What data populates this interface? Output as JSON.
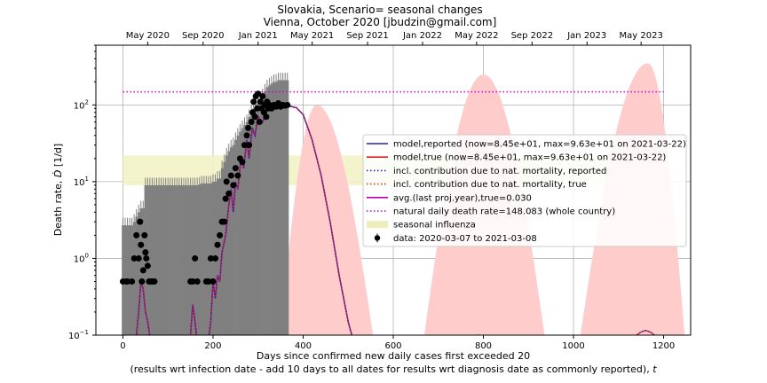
{
  "chart_data": {
    "type": "line",
    "title": "Slovakia, Scenario= seasonal changes",
    "subtitle": "Vienna, October 2020 [jbudzin@gmail.com]",
    "xlabel": "Days since confirmed new daily cases first exceeded 20",
    "xlabel2": "(results wrt infection date - add 10 days to all dates for results wrt diagnosis date as commonly reported), ",
    "xlabel2_var": "t",
    "ylabel": "Death rate, ",
    "ylabel_var": "Ḋ",
    "ylabel_unit": " [1/d]",
    "xlim": [
      -60,
      1260
    ],
    "ylim": [
      0.1,
      600
    ],
    "yscale": "log",
    "grid": true,
    "legend_position": "center-right",
    "x_ticks": [
      0,
      200,
      400,
      600,
      800,
      1000,
      1200
    ],
    "x_tick_labels": [
      "0",
      "200",
      "400",
      "600",
      "800",
      "1000",
      "1200"
    ],
    "y_ticks": [
      {
        "value": 0.1,
        "base": "10",
        "exp": "−1"
      },
      {
        "value": 1,
        "base": "10",
        "exp": "0"
      },
      {
        "value": 10,
        "base": "10",
        "exp": "1"
      },
      {
        "value": 100,
        "base": "10",
        "exp": "2"
      }
    ],
    "top_ticks": [
      {
        "x": 55,
        "label": "May 2020"
      },
      {
        "x": 178,
        "label": "Sep 2020"
      },
      {
        "x": 300,
        "label": "Jan 2021"
      },
      {
        "x": 420,
        "label": "May 2021"
      },
      {
        "x": 543,
        "label": "Sep 2021"
      },
      {
        "x": 665,
        "label": "Jan 2022"
      },
      {
        "x": 785,
        "label": "May 2022"
      },
      {
        "x": 908,
        "label": "Sep 2022"
      },
      {
        "x": 1030,
        "label": "Jan 2023"
      },
      {
        "x": 1150,
        "label": "May 2023"
      }
    ],
    "influenza_band": {
      "y_low": 9,
      "y_high": 22,
      "x_start": 0,
      "x_end": 1200
    },
    "natural_rate_value": 148.083,
    "seasonal_envelopes": [
      {
        "x_start": 340,
        "x_peak": 430,
        "x_end": 570,
        "peak": 100
      },
      {
        "x_start": 655,
        "x_peak": 800,
        "x_end": 950,
        "peak": 250
      },
      {
        "x_start": 1000,
        "x_peak": 1165,
        "x_end": 1255,
        "peak": 350
      }
    ],
    "model_reported": [
      [
        0,
        0.05
      ],
      [
        30,
        0.1
      ],
      [
        35,
        0.2
      ],
      [
        40,
        0.5
      ],
      [
        45,
        0.4
      ],
      [
        50,
        0.2
      ],
      [
        55,
        0.15
      ],
      [
        62,
        0.08
      ],
      [
        120,
        0.05
      ],
      [
        150,
        0.1
      ],
      [
        155,
        0.25
      ],
      [
        160,
        0.15
      ],
      [
        165,
        0.08
      ],
      [
        185,
        0.05
      ],
      [
        195,
        0.15
      ],
      [
        200,
        0.5
      ],
      [
        205,
        0.3
      ],
      [
        210,
        0.6
      ],
      [
        215,
        0.5
      ],
      [
        220,
        1.2
      ],
      [
        228,
        2
      ],
      [
        235,
        5
      ],
      [
        240,
        8
      ],
      [
        245,
        4
      ],
      [
        250,
        10
      ],
      [
        255,
        8
      ],
      [
        262,
        20
      ],
      [
        268,
        15
      ],
      [
        275,
        35
      ],
      [
        280,
        20
      ],
      [
        287,
        50
      ],
      [
        293,
        40
      ],
      [
        300,
        70
      ],
      [
        310,
        60
      ],
      [
        320,
        85
      ],
      [
        330,
        90
      ],
      [
        345,
        95
      ],
      [
        357,
        96
      ],
      [
        370,
        96.3
      ],
      [
        385,
        92
      ],
      [
        400,
        75
      ],
      [
        420,
        35
      ],
      [
        440,
        12
      ],
      [
        460,
        3
      ],
      [
        480,
        0.6
      ],
      [
        500,
        0.15
      ],
      [
        508,
        0.1
      ]
    ],
    "bars": [
      [
        0,
        2.7
      ],
      [
        5,
        2.7
      ],
      [
        10,
        2.7
      ],
      [
        15,
        2.7
      ],
      [
        20,
        2.7
      ],
      [
        25,
        3
      ],
      [
        30,
        3.5
      ],
      [
        35,
        4
      ],
      [
        40,
        4.5
      ],
      [
        45,
        4.5
      ],
      [
        50,
        9
      ],
      [
        55,
        9
      ],
      [
        60,
        9
      ],
      [
        65,
        9
      ],
      [
        70,
        9
      ],
      [
        75,
        9
      ],
      [
        80,
        9
      ],
      [
        85,
        9
      ],
      [
        90,
        9
      ],
      [
        95,
        9
      ],
      [
        100,
        9
      ],
      [
        105,
        9
      ],
      [
        110,
        9
      ],
      [
        115,
        9
      ],
      [
        120,
        9
      ],
      [
        125,
        9
      ],
      [
        130,
        9
      ],
      [
        135,
        9
      ],
      [
        140,
        9
      ],
      [
        145,
        9
      ],
      [
        150,
        9
      ],
      [
        155,
        9
      ],
      [
        160,
        9
      ],
      [
        165,
        9
      ],
      [
        170,
        9.2
      ],
      [
        175,
        9.5
      ],
      [
        180,
        9.5
      ],
      [
        185,
        9.5
      ],
      [
        190,
        9.5
      ],
      [
        195,
        9.5
      ],
      [
        200,
        10
      ],
      [
        205,
        10
      ],
      [
        210,
        11
      ],
      [
        215,
        11
      ],
      [
        220,
        15
      ],
      [
        225,
        18
      ],
      [
        230,
        22
      ],
      [
        235,
        25
      ],
      [
        240,
        28
      ],
      [
        245,
        30
      ],
      [
        250,
        35
      ],
      [
        255,
        40
      ],
      [
        260,
        45
      ],
      [
        265,
        50
      ],
      [
        270,
        55
      ],
      [
        275,
        60
      ],
      [
        280,
        70
      ],
      [
        285,
        80
      ],
      [
        290,
        90
      ],
      [
        295,
        100
      ],
      [
        300,
        110
      ],
      [
        305,
        120
      ],
      [
        310,
        130
      ],
      [
        315,
        150
      ],
      [
        320,
        170
      ],
      [
        325,
        180
      ],
      [
        330,
        190
      ],
      [
        335,
        200
      ],
      [
        340,
        200
      ],
      [
        345,
        210
      ],
      [
        350,
        210
      ],
      [
        355,
        210
      ],
      [
        360,
        210
      ],
      [
        365,
        210
      ]
    ],
    "data_points": [
      [
        0,
        0.5
      ],
      [
        8,
        0.5
      ],
      [
        10,
        0.5
      ],
      [
        20,
        0.5
      ],
      [
        25,
        1
      ],
      [
        30,
        2
      ],
      [
        35,
        1
      ],
      [
        38,
        3
      ],
      [
        40,
        1.5
      ],
      [
        42,
        0.5
      ],
      [
        45,
        0.7
      ],
      [
        48,
        2
      ],
      [
        50,
        1.2
      ],
      [
        52,
        1
      ],
      [
        55,
        0.8
      ],
      [
        58,
        0.5
      ],
      [
        62,
        0.5
      ],
      [
        66,
        0.5
      ],
      [
        70,
        0.5
      ],
      [
        150,
        0.5
      ],
      [
        155,
        0.5
      ],
      [
        160,
        1
      ],
      [
        165,
        0.5
      ],
      [
        185,
        0.5
      ],
      [
        190,
        0.5
      ],
      [
        195,
        1
      ],
      [
        200,
        0.5
      ],
      [
        205,
        1
      ],
      [
        210,
        1.5
      ],
      [
        215,
        2
      ],
      [
        220,
        3
      ],
      [
        225,
        3
      ],
      [
        228,
        6
      ],
      [
        230,
        10
      ],
      [
        235,
        7
      ],
      [
        240,
        12
      ],
      [
        245,
        9
      ],
      [
        250,
        15
      ],
      [
        255,
        12
      ],
      [
        260,
        20
      ],
      [
        265,
        18
      ],
      [
        270,
        30
      ],
      [
        275,
        40
      ],
      [
        278,
        50
      ],
      [
        280,
        30
      ],
      [
        285,
        60
      ],
      [
        288,
        80
      ],
      [
        290,
        110
      ],
      [
        293,
        70
      ],
      [
        295,
        130
      ],
      [
        298,
        90
      ],
      [
        300,
        140
      ],
      [
        303,
        60
      ],
      [
        305,
        110
      ],
      [
        308,
        90
      ],
      [
        310,
        130
      ],
      [
        313,
        80
      ],
      [
        315,
        100
      ],
      [
        318,
        70
      ],
      [
        320,
        110
      ],
      [
        323,
        90
      ],
      [
        325,
        100
      ],
      [
        330,
        90
      ],
      [
        335,
        100
      ],
      [
        340,
        95
      ],
      [
        345,
        105
      ],
      [
        350,
        95
      ],
      [
        355,
        100
      ],
      [
        360,
        98
      ],
      [
        365,
        100
      ]
    ],
    "avg_points": [
      [
        1140,
        0.1
      ],
      [
        1150,
        0.11
      ],
      [
        1160,
        0.115
      ],
      [
        1170,
        0.11
      ],
      [
        1180,
        0.1
      ]
    ],
    "avg_points_2": [
      [
        785,
        0.1
      ],
      [
        790,
        0.1
      ]
    ],
    "legend": [
      {
        "label": "model,reported (now=8.45e+01, max=9.63e+01 on 2021-03-22)",
        "color": "#2222aa",
        "style": "solid"
      },
      {
        "label": "model,true (now=8.45e+01, max=9.63e+01 on 2021-03-22)",
        "color": "#dd2222",
        "style": "solid"
      },
      {
        "label": "incl. contribution due to nat. mortality, reported",
        "color": "#2222cc",
        "style": "dotted"
      },
      {
        "label": "incl. contribution due to nat. mortality, true",
        "color": "#dd3300",
        "style": "dotted"
      },
      {
        "label": "avg.(last proj.year),true=0.030",
        "color": "#bb00bb",
        "style": "solid"
      },
      {
        "label": "natural daily death rate=148.083 (whole country)",
        "color": "#cc00cc",
        "style": "dotted"
      },
      {
        "label": "seasonal influenza",
        "color": "#eeeebb",
        "style": "patch"
      },
      {
        "label": "data: 2020-03-07 to 2021-03-08",
        "color": "#000000",
        "style": "marker"
      }
    ],
    "colors": {
      "bars": "#808080",
      "envelope": "#ffcccc",
      "influenza": "#f3f3c6",
      "data": "#000000",
      "model_reported": "#2222aa",
      "model_true": "#dd2222",
      "natural": "#cc00cc",
      "avg": "#bb00bb"
    }
  }
}
